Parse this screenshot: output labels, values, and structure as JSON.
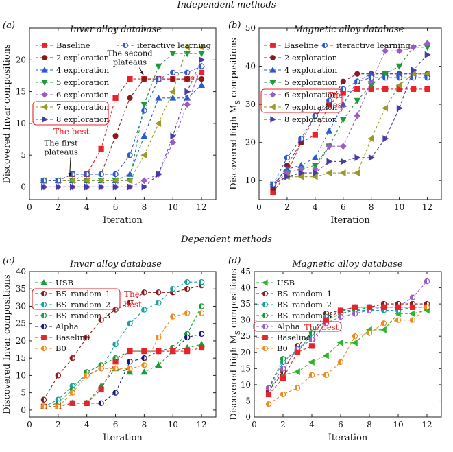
{
  "sections": {
    "top": "Independent methods",
    "bottom": "Dependent methods"
  },
  "colors": {
    "red": "#e8232a",
    "darkred": "#8b1a1a",
    "blue": "#2a5bd7",
    "green": "#1a9c3a",
    "purple": "#9a5cc6",
    "olive": "#9a9a28",
    "indigo": "#4a3aa8",
    "teal": "#1aa0a0",
    "orange": "#f08a1c",
    "navy": "#1a1a7a",
    "lime": "#2ab52a"
  },
  "chart_data": [
    {
      "panel": "(a)",
      "type": "line",
      "title": "Invar alloy database",
      "xlabel": "Iteration",
      "ylabel": "Discovered Invar compositions",
      "xlim": [
        0,
        13
      ],
      "xticks": [
        0,
        2,
        4,
        6,
        8,
        10,
        12
      ],
      "ylim": [
        -2,
        25
      ],
      "yticks": [
        0,
        5,
        10,
        15,
        20
      ],
      "legend_columns": 2,
      "x": [
        1,
        2,
        3,
        4,
        5,
        6,
        7,
        8,
        9,
        10,
        11,
        12
      ],
      "series": [
        {
          "name": "Baseline",
          "color": "#e8232a",
          "marker": "square",
          "values": [
            1,
            1,
            2,
            2,
            6,
            14,
            17,
            17,
            17,
            17,
            17,
            18
          ]
        },
        {
          "name": "2 exploration",
          "color": "#8b1a1a",
          "marker": "circle",
          "values": [
            1,
            1,
            1,
            2,
            2,
            8,
            14,
            17,
            17,
            17,
            17,
            17
          ]
        },
        {
          "name": "4 exploration",
          "color": "#2a5bd7",
          "marker": "triangle-up",
          "values": [
            1,
            1,
            1,
            1,
            1,
            1,
            2,
            8,
            14,
            14,
            14,
            16
          ]
        },
        {
          "name": "5 exploration",
          "color": "#1a9c3a",
          "marker": "triangle-down",
          "values": [
            1,
            1,
            1,
            1,
            1,
            1,
            1,
            13,
            19,
            21,
            21,
            21
          ]
        },
        {
          "name": "6 exploration",
          "color": "#9a5cc6",
          "marker": "diamond",
          "values": [
            0,
            0,
            0,
            0,
            0,
            0,
            0,
            1,
            2,
            7,
            13,
            19
          ]
        },
        {
          "name": "7 exploration",
          "color": "#9a9a28",
          "marker": "triangle-left",
          "values": [
            1,
            1,
            1,
            1,
            1,
            1,
            1,
            5,
            10,
            15,
            22,
            22
          ]
        },
        {
          "name": "8 exploration",
          "color": "#4a3aa8",
          "marker": "triangle-right",
          "values": [
            0,
            0,
            0,
            0,
            0,
            0,
            0,
            0,
            2,
            8,
            15,
            20
          ]
        },
        {
          "name": "iteractive learning",
          "color": "#2a5bd7",
          "marker": "circle-half",
          "values": [
            1,
            1,
            2,
            2,
            2,
            2,
            5,
            12,
            17,
            18,
            18,
            19
          ]
        }
      ],
      "annotations": [
        {
          "text": [
            "The first",
            "plateaus"
          ],
          "x": 2.2,
          "y": 6.5,
          "arrow_to": [
            2.8,
            1.6
          ],
          "color": "#111"
        },
        {
          "text": [
            "The second",
            "plateaus"
          ],
          "x": 7.0,
          "y": 20.6,
          "arrow_to": [
            7.95,
            17.6
          ],
          "color": "#111"
        }
      ],
      "highlight_box": {
        "entries": [
          5,
          6
        ],
        "text": "The best",
        "color": "#e8232a"
      }
    },
    {
      "panel": "(b)",
      "type": "line",
      "title": "Magnetic alloy database",
      "xlabel": "Iteration",
      "ylabel": "Discovered high M_S compositions",
      "xlim": [
        0,
        13
      ],
      "xticks": [
        0,
        2,
        4,
        6,
        8,
        10,
        12
      ],
      "ylim": [
        5,
        50
      ],
      "yticks": [
        10,
        20,
        30,
        40,
        50
      ],
      "legend_columns": 2,
      "x": [
        1,
        2,
        3,
        4,
        5,
        6,
        7,
        8,
        9,
        10,
        11,
        12
      ],
      "series": [
        {
          "name": "Baseline",
          "color": "#e8232a",
          "marker": "square",
          "values": [
            7,
            12,
            20,
            22,
            30,
            33,
            34,
            34,
            34,
            34,
            34,
            34
          ]
        },
        {
          "name": "2 exploration",
          "color": "#8b1a1a",
          "marker": "circle",
          "values": [
            8,
            14,
            20,
            27,
            30,
            36,
            38,
            38,
            38,
            38,
            38,
            38
          ]
        },
        {
          "name": "4 exploration",
          "color": "#2a5bd7",
          "marker": "triangle-up",
          "values": [
            9,
            13,
            14,
            16,
            23,
            30,
            36,
            38,
            38,
            38,
            38,
            38
          ]
        },
        {
          "name": "5 exploration",
          "color": "#1a9c3a",
          "marker": "triangle-down",
          "values": [
            9,
            12,
            13,
            14,
            19,
            26,
            31,
            35,
            38,
            40,
            45,
            45
          ]
        },
        {
          "name": "6 exploration",
          "color": "#9a5cc6",
          "marker": "diamond",
          "values": [
            9,
            12,
            13,
            13,
            19,
            19,
            27,
            36,
            44,
            44,
            45,
            46
          ]
        },
        {
          "name": "7 exploration",
          "color": "#9a9a28",
          "marker": "triangle-left",
          "values": [
            9,
            11,
            11,
            11,
            12,
            12,
            12,
            21,
            29,
            35,
            38,
            38
          ]
        },
        {
          "name": "8 exploration",
          "color": "#4a3aa8",
          "marker": "triangle-right",
          "values": [
            9,
            11,
            12,
            12,
            15,
            15,
            16,
            16,
            21,
            29,
            39,
            43
          ]
        },
        {
          "name": "iteractive learning",
          "color": "#2a5bd7",
          "marker": "circle-half",
          "values": [
            9,
            16,
            21,
            27,
            31,
            34,
            36,
            37,
            37,
            37,
            37,
            37
          ]
        }
      ],
      "highlight_box": {
        "entries": [
          4,
          5
        ],
        "text": [
          "The",
          "best"
        ],
        "color": "#e8232a"
      }
    },
    {
      "panel": "(c)",
      "type": "line",
      "title": "Invar alloy database",
      "xlabel": "Iteration",
      "ylabel": "Discovered Invar compositions",
      "xlim": [
        0,
        13
      ],
      "xticks": [
        0,
        2,
        4,
        6,
        8,
        10,
        12
      ],
      "ylim": [
        -2,
        40
      ],
      "yticks": [
        0,
        5,
        10,
        15,
        20,
        25,
        30,
        35,
        40
      ],
      "legend_columns": 1,
      "x": [
        1,
        2,
        3,
        4,
        5,
        6,
        7,
        8,
        9,
        10,
        11,
        12
      ],
      "series": [
        {
          "name": "USB",
          "color": "#1a9c3a",
          "marker": "triangle-up",
          "values": [
            1,
            1,
            2,
            2,
            7,
            12,
            11,
            11,
            13,
            17,
            18,
            19
          ]
        },
        {
          "name": "BS_random_1",
          "color": "#8b1a1a",
          "marker": "circle-half",
          "values": [
            3,
            10,
            15,
            21,
            26,
            29,
            31,
            34,
            34,
            34,
            35,
            36
          ]
        },
        {
          "name": "BS_random_2",
          "color": "#1aa0a0",
          "marker": "circle-half",
          "values": [
            1,
            3,
            7,
            10,
            12,
            19,
            25,
            29,
            31,
            35,
            37,
            37
          ]
        },
        {
          "name": "BS_random_3",
          "color": "#1a9c3a",
          "marker": "circle-half",
          "values": [
            1,
            2,
            6,
            11,
            13,
            15,
            17,
            17,
            17,
            18,
            22,
            30
          ]
        },
        {
          "name": "Alpha",
          "color": "#1a1a7a",
          "marker": "circle-half",
          "values": [
            1,
            1,
            2,
            2,
            2,
            5,
            14,
            15,
            17,
            17,
            21,
            22
          ]
        },
        {
          "name": "Baseline",
          "color": "#e8232a",
          "marker": "square",
          "values": [
            1,
            1,
            2,
            2,
            6,
            14,
            17,
            17,
            17,
            17,
            17,
            18
          ]
        },
        {
          "name": "B0",
          "color": "#f08a1c",
          "marker": "circle-half",
          "values": [
            1,
            1,
            5,
            10,
            12,
            12,
            12,
            13,
            21,
            27,
            28,
            28
          ]
        }
      ],
      "highlight_box": {
        "entries": [
          1,
          2
        ],
        "text": [
          "The",
          "best"
        ],
        "color": "#e8232a"
      }
    },
    {
      "panel": "(d)",
      "type": "line",
      "title": "Magnetic alloy database",
      "xlabel": "Iteration",
      "ylabel": "Discovered high M_S compositions",
      "xlim": [
        0,
        13
      ],
      "xticks": [
        0,
        2,
        4,
        6,
        8,
        10,
        12
      ],
      "ylim": [
        0,
        45
      ],
      "yticks": [
        0,
        5,
        10,
        15,
        20,
        25,
        30,
        35,
        40,
        45
      ],
      "legend_columns": 1,
      "x": [
        1,
        2,
        3,
        4,
        5,
        6,
        7,
        8,
        9,
        10,
        11,
        12
      ],
      "series": [
        {
          "name": "USB",
          "color": "#2ab52a",
          "marker": "triangle-left",
          "values": [
            9,
            13,
            14,
            17,
            19,
            23,
            23,
            27,
            27,
            32,
            32,
            33
          ]
        },
        {
          "name": "BS_random_1",
          "color": "#8b1a1a",
          "marker": "circle-half",
          "values": [
            8,
            14,
            22,
            26,
            32,
            33,
            34,
            34,
            35,
            35,
            35,
            35
          ]
        },
        {
          "name": "BS_random_2",
          "color": "#1aa0a0",
          "marker": "circle-half",
          "values": [
            9,
            17,
            21,
            25,
            31,
            33,
            33,
            33,
            33,
            33,
            34,
            34
          ]
        },
        {
          "name": "BS_random_3",
          "color": "#1a9c3a",
          "marker": "circle-half",
          "values": [
            9,
            18,
            20,
            26,
            30,
            32,
            33,
            34,
            34,
            34,
            34,
            34
          ]
        },
        {
          "name": "Alpha",
          "color": "#9a5cc6",
          "marker": "circle-half",
          "values": [
            9,
            15,
            21,
            24,
            29,
            31,
            32,
            33,
            34,
            34,
            37,
            42
          ]
        },
        {
          "name": "Baseline",
          "color": "#e8232a",
          "marker": "square",
          "values": [
            7,
            12,
            20,
            22,
            30,
            33,
            34,
            34,
            34,
            34,
            34,
            34
          ]
        },
        {
          "name": "B0",
          "color": "#f08a1c",
          "marker": "circle-half",
          "values": [
            4,
            7,
            9,
            13,
            13,
            17,
            25,
            26,
            29,
            30,
            30,
            34
          ]
        }
      ],
      "highlight_box": {
        "entries": [
          4
        ],
        "text": "The best",
        "color": "#e8232a"
      }
    }
  ]
}
